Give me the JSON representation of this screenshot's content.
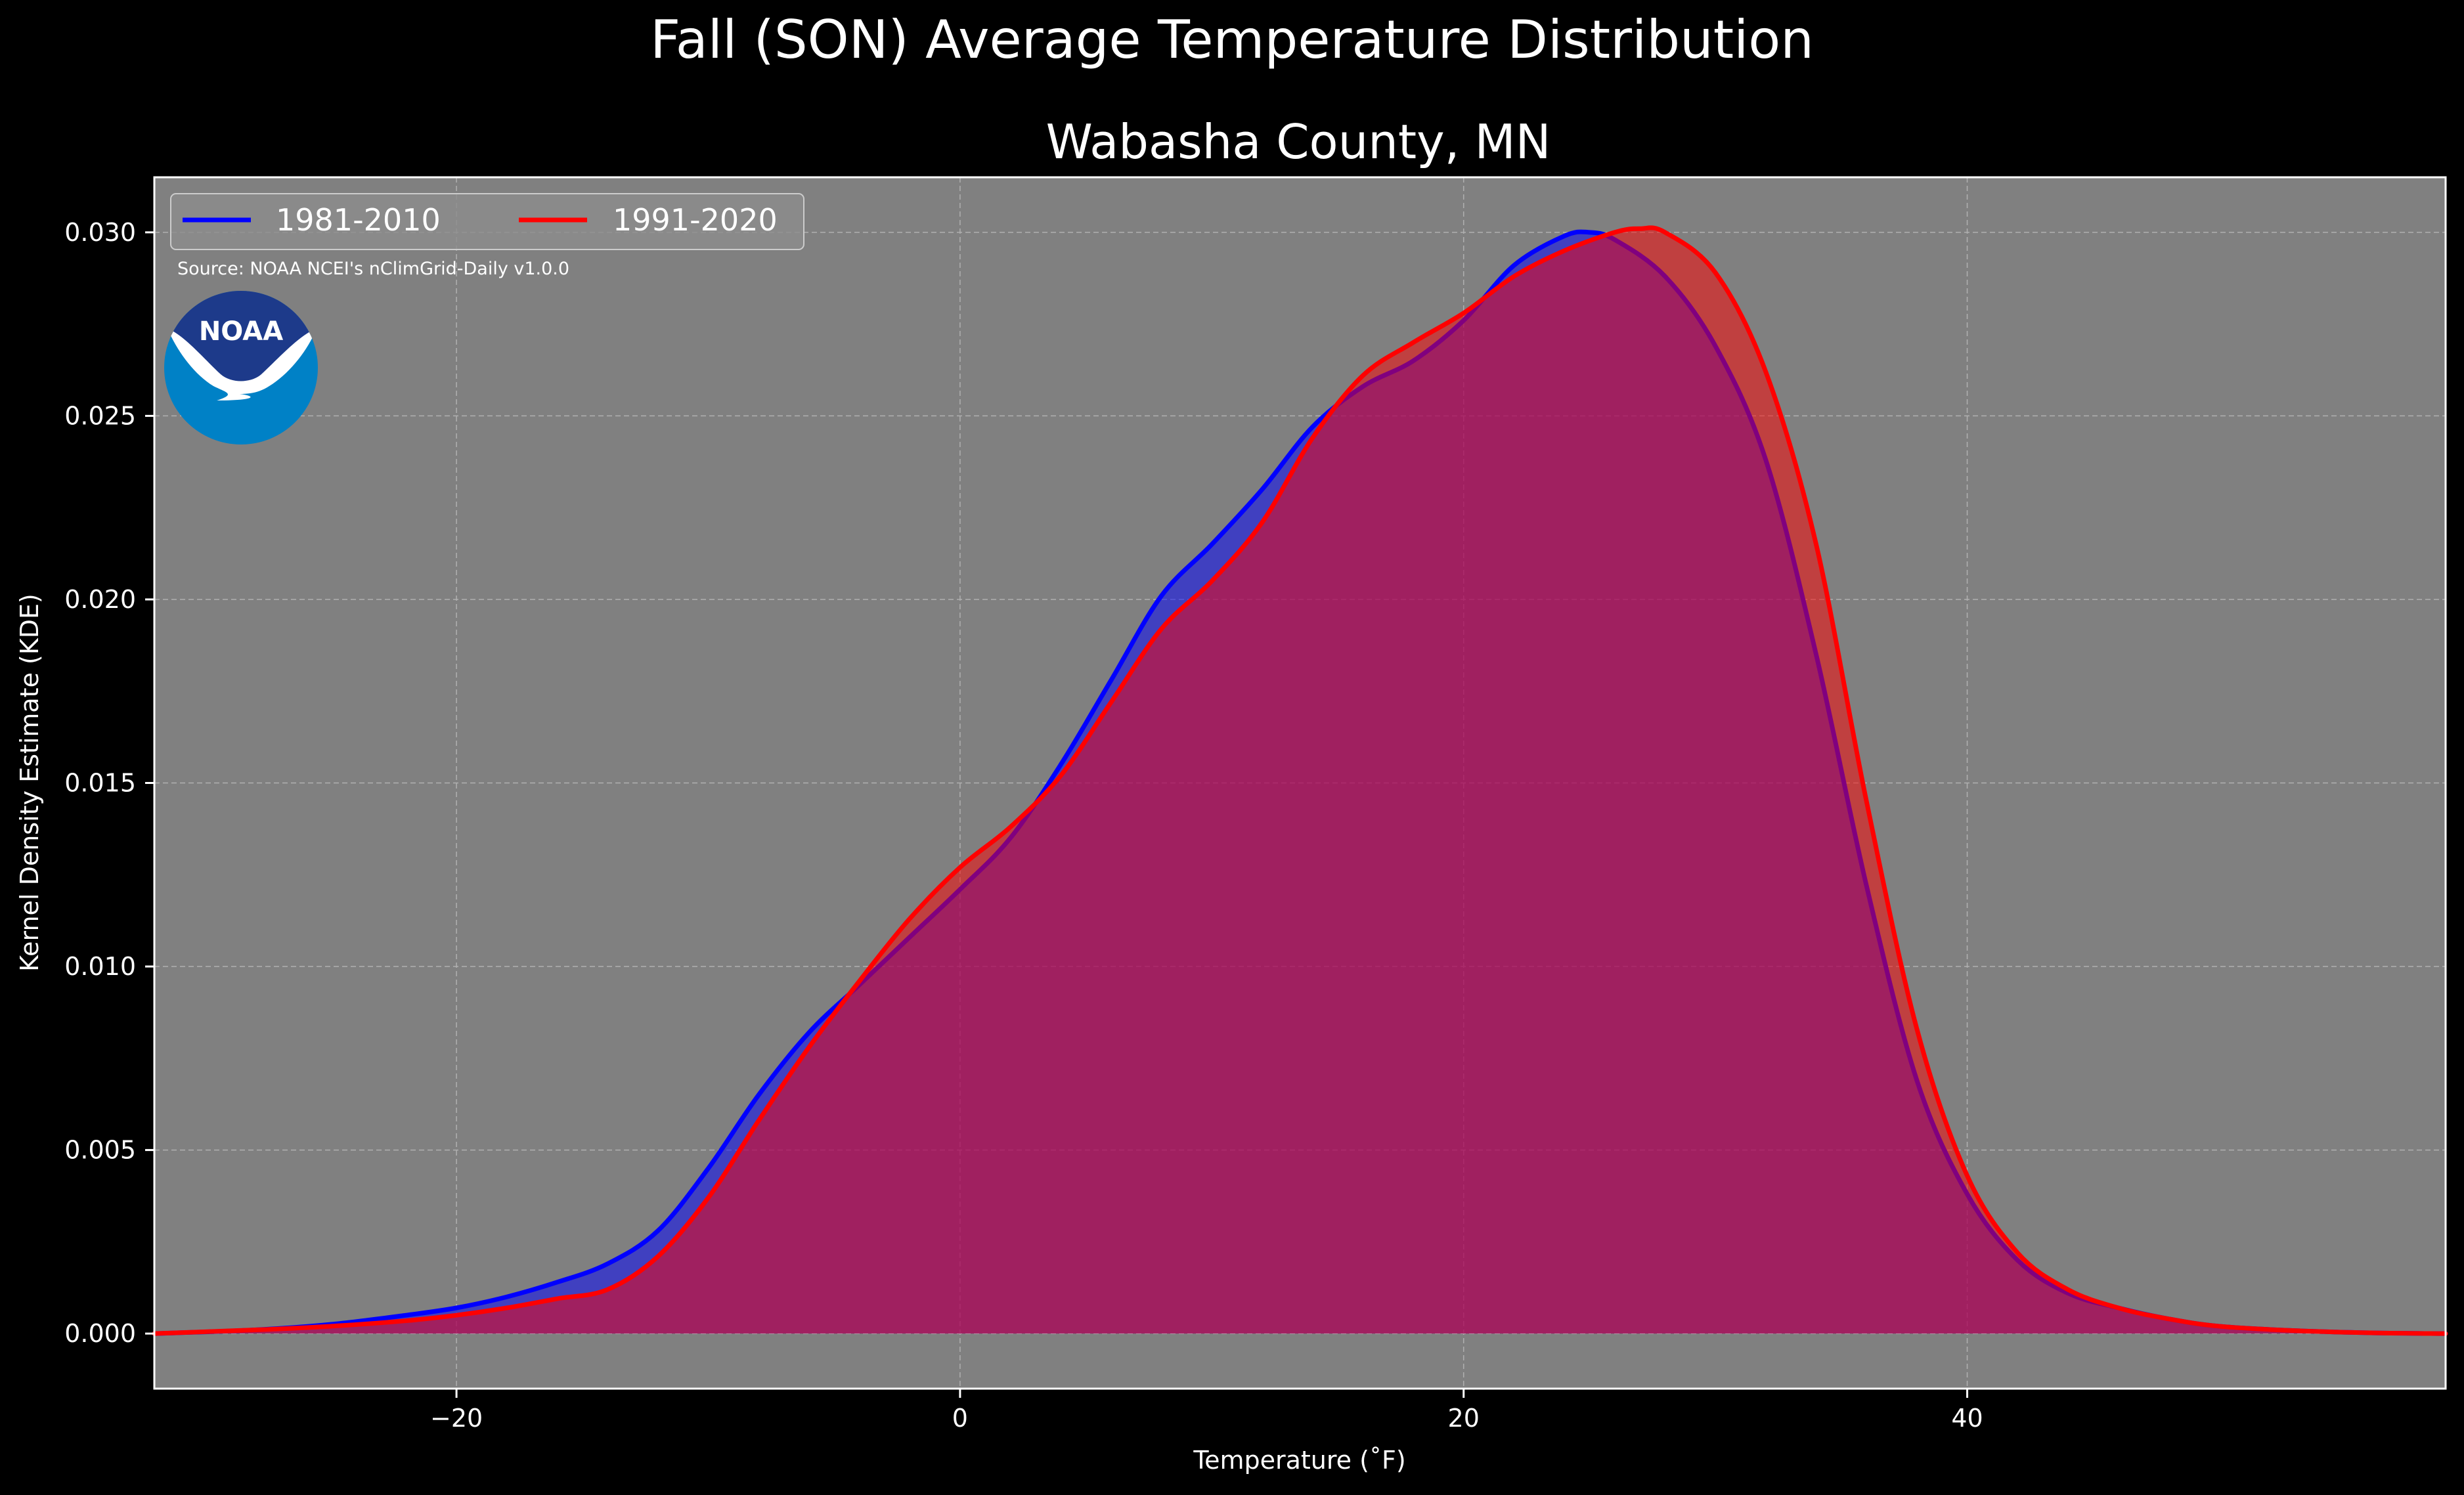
{
  "figure": {
    "suptitle": "Fall (SON) Average Temperature Distribution",
    "background": "#000000"
  },
  "chart_data": {
    "type": "area",
    "title": "Wabasha County, MN",
    "xlabel": "Temperature (˚F)",
    "ylabel": "Kernel Density Estimate (KDE)",
    "xlim": [
      -32,
      59
    ],
    "ylim": [
      -0.0015,
      0.0315
    ],
    "xticks": [
      -20,
      0,
      20,
      40
    ],
    "xtick_labels": [
      "−20",
      "0",
      "20",
      "40"
    ],
    "yticks": [
      0.0,
      0.005,
      0.01,
      0.015,
      0.02,
      0.025,
      0.03
    ],
    "ytick_labels": [
      "0.000",
      "0.005",
      "0.010",
      "0.015",
      "0.020",
      "0.025",
      "0.030"
    ],
    "grid": true,
    "legend_placement": "upper-left",
    "plot_background": "#808080",
    "source_note": "Source: NOAA NCEI's nClimGrid-Daily v1.0.0",
    "logo_text": "NOAA",
    "series": [
      {
        "name": "1981-2010",
        "color": "#0000ff",
        "fill_color": "#0000ff",
        "x": [
          -32,
          -28,
          -25,
          -22,
          -20,
          -18,
          -16,
          -14,
          -12,
          -10,
          -8,
          -6,
          -4,
          -2,
          0,
          2,
          4,
          6,
          8,
          10,
          12,
          14,
          16,
          18,
          20,
          22,
          24,
          25,
          26,
          28,
          30,
          32,
          34,
          36,
          38,
          40,
          42,
          44,
          46,
          48,
          50,
          53,
          56,
          59
        ],
        "y": [
          0.0,
          0.0001,
          0.00025,
          0.0005,
          0.0007,
          0.001,
          0.0014,
          0.0019,
          0.0028,
          0.0045,
          0.0065,
          0.0082,
          0.0095,
          0.0108,
          0.0121,
          0.0135,
          0.0155,
          0.0178,
          0.0201,
          0.0215,
          0.023,
          0.0247,
          0.0258,
          0.0265,
          0.0276,
          0.0291,
          0.0299,
          0.03,
          0.0298,
          0.0288,
          0.0269,
          0.0238,
          0.0185,
          0.0122,
          0.0069,
          0.0038,
          0.002,
          0.0011,
          0.0007,
          0.0004,
          0.0002,
          8e-05,
          2e-05,
          0.0
        ]
      },
      {
        "name": "1991-2020",
        "color": "#ff0000",
        "fill_color": "#ff0000",
        "x": [
          -32,
          -28,
          -25,
          -22,
          -20,
          -18,
          -16,
          -14,
          -12,
          -10,
          -8,
          -6,
          -4,
          -2,
          0,
          2,
          4,
          6,
          8,
          10,
          12,
          14,
          16,
          18,
          20,
          22,
          24,
          26,
          27,
          28,
          30,
          32,
          34,
          36,
          38,
          40,
          42,
          44,
          46,
          48,
          50,
          53,
          56,
          59
        ],
        "y": [
          0.0,
          0.0001,
          0.0002,
          0.00035,
          0.0005,
          0.0007,
          0.00095,
          0.0012,
          0.0021,
          0.0037,
          0.0058,
          0.0078,
          0.0096,
          0.0113,
          0.0127,
          0.0138,
          0.0152,
          0.0172,
          0.0192,
          0.0205,
          0.0221,
          0.0244,
          0.0261,
          0.027,
          0.0278,
          0.0288,
          0.0295,
          0.03,
          0.0301,
          0.03,
          0.0289,
          0.0262,
          0.0215,
          0.0145,
          0.0083,
          0.0043,
          0.0022,
          0.0012,
          0.0007,
          0.0004,
          0.0002,
          8e-05,
          2e-05,
          0.0
        ]
      }
    ]
  }
}
